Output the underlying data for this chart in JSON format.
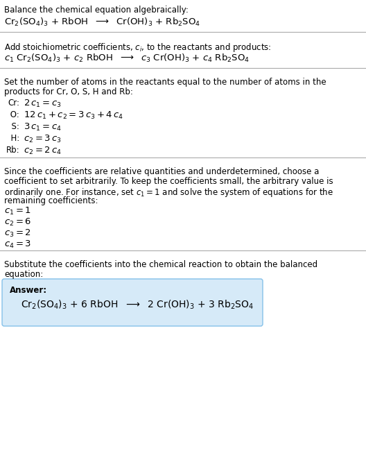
{
  "bg_color": "#ffffff",
  "text_color": "#000000",
  "divider_color": "#aaaaaa",
  "answer_box_color": "#d6eaf8",
  "answer_box_edge": "#85c1e9",
  "lmargin": 6,
  "fs_body": 8.5,
  "fs_eq": 9.5,
  "fs_answer_eq": 10.0,
  "section1_line1": "Balance the chemical equation algebraically:",
  "section2_line1": "Add stoichiometric coefficients, $c_i$, to the reactants and products:",
  "section3_line1": "Set the number of atoms in the reactants equal to the number of atoms in the",
  "section3_line2": "products for Cr, O, S, H and Rb:",
  "section4_para": [
    "Since the coefficients are relative quantities and underdetermined, choose a",
    "coefficient to set arbitrarily. To keep the coefficients small, the arbitrary value is",
    "ordinarily one. For instance, set $c_1 = 1$ and solve the system of equations for the",
    "remaining coefficients:"
  ],
  "section5_line1": "Substitute the coefficients into the chemical reaction to obtain the balanced",
  "section5_line2": "equation:",
  "answer_label": "Answer:",
  "eq1": "$\\mathrm{Cr_2(SO_4)_3}$ + RbOH  $\\longrightarrow$  $\\mathrm{Cr(OH)_3}$ + $\\mathrm{Rb_2SO_4}$",
  "eq2": "$c_1$ $\\mathrm{Cr_2(SO_4)_3}$ + $c_2$ RbOH  $\\longrightarrow$  $c_3$ $\\mathrm{Cr(OH)_3}$ + $c_4$ $\\mathrm{Rb_2SO_4}$",
  "atom_labels": [
    "Cr:",
    " O:",
    "  S:",
    "  H:",
    "Rb:"
  ],
  "atom_eqs": [
    "$2\\,c_1 = c_3$",
    "$12\\,c_1 + c_2 = 3\\,c_3 + 4\\,c_4$",
    "$3\\,c_1 = c_4$",
    "$c_2 = 3\\,c_3$",
    "$c_2 = 2\\,c_4$"
  ],
  "coefficients": [
    "$c_1 = 1$",
    "$c_2 = 6$",
    "$c_3 = 2$",
    "$c_4 = 3$"
  ],
  "answer_eq": "$\\mathrm{Cr_2(SO_4)_3}$ + 6 RbOH  $\\longrightarrow$  2 $\\mathrm{Cr(OH)_3}$ + 3 $\\mathrm{Rb_2SO_4}$"
}
